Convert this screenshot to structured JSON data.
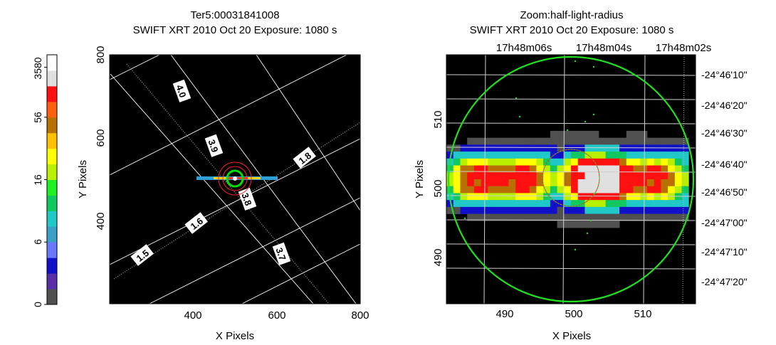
{
  "left": {
    "title": "Ter5:00031841008",
    "subtitle": "SWIFT XRT   2010 Oct 20    Exposure: 1080 s",
    "xlabel": "X Pixels",
    "ylabel": "Y Pixels",
    "x_ticks": [
      "400",
      "600",
      "800"
    ],
    "y_ticks": [
      "800",
      "600",
      "400"
    ],
    "grid_labels": [
      "4.0",
      "3.9",
      "3.8",
      "3.7",
      "1.8",
      "1.6",
      "1.5"
    ]
  },
  "right": {
    "title": "Zoom:half-light-radius",
    "subtitle": "SWIFT XRT   2010 Oct 20    Exposure: 1080 s",
    "xlabel": "X Pixels",
    "ylabel": "Y Pixels",
    "x_ticks": [
      "490",
      "500",
      "510"
    ],
    "y_ticks": [
      "510",
      "500",
      "490"
    ],
    "ra_ticks": [
      "17h48m06s",
      "17h48m04s",
      "17h48m02s"
    ],
    "dec_ticks": [
      "-24°46'10\"",
      "-24°46'20\"",
      "-24°46'30\"",
      "-24°46'40\"",
      "-24°46'50\"",
      "-24°47'00\"",
      "-24°47'10\"",
      "-24°47'20\""
    ]
  },
  "colorbar": {
    "tick_labels": [
      "0",
      "6",
      "16",
      "56",
      "3580"
    ],
    "colors": [
      "#505050",
      "#5a2ea8",
      "#1010c8",
      "#6878ff",
      "#3aa0c8",
      "#20c8c8",
      "#10c860",
      "#20f020",
      "#b8f000",
      "#ffff00",
      "#ffc000",
      "#b87000",
      "#ff6010",
      "#ff1010",
      "#e0e0e0",
      "#ffffff"
    ]
  },
  "chart_data": [
    {
      "type": "heatmap",
      "title": "Ter5:00031841008",
      "subtitle": "SWIFT XRT   2010 Oct 20    Exposure: 1080 s",
      "xlabel": "X Pixels",
      "ylabel": "Y Pixels",
      "xlim": [
        200,
        800
      ],
      "ylim": [
        200,
        800
      ],
      "x_ticks": [
        400,
        600,
        800
      ],
      "y_ticks": [
        400,
        600,
        800
      ],
      "grid": true,
      "source_center": [
        500,
        500
      ]
    },
    {
      "type": "heatmap",
      "title": "Zoom:half-light-radius",
      "subtitle": "SWIFT XRT   2010 Oct 20    Exposure: 1080 s",
      "xlabel": "X Pixels",
      "ylabel": "Y Pixels",
      "xlim": [
        482,
        518
      ],
      "ylim": [
        482,
        518
      ],
      "x_ticks": [
        490,
        500,
        510
      ],
      "y_ticks": [
        490,
        500,
        510
      ],
      "grid": true,
      "circle_center": [
        500,
        500
      ],
      "circle_radius": 17.5
    }
  ]
}
